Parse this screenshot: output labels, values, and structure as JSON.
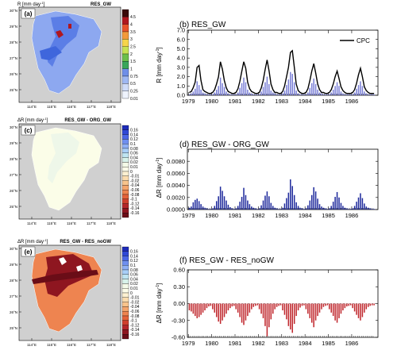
{
  "map_a": {
    "panel_label": "(a)",
    "unit_label": "R [mm day",
    "unit_exp": "-1",
    "unit_close": "]",
    "experiment": "RES_GW",
    "colorbar": {
      "labels": [
        "4.5",
        "4",
        "3.5",
        "3",
        "2.5",
        "2",
        "1.5",
        "1",
        "0.75",
        "0.5",
        "0.25",
        "0.01"
      ],
      "colors": [
        "#3a0a0a",
        "#b0171f",
        "#e8532b",
        "#f39a3a",
        "#f7d54a",
        "#c6e253",
        "#6cbf4a",
        "#3aa65a",
        "#6f8fe8",
        "#9fb8f3",
        "#cfdcf9",
        "#eef3fd"
      ]
    }
  },
  "map_c": {
    "panel_label": "(c)",
    "unit_label": "ΔR [mm day",
    "unit_exp": "-1",
    "unit_close": "]",
    "experiment": "RES_GW - ORG_GW",
    "colorbar": {
      "labels": [
        "0.16",
        "0.14",
        "0.12",
        "0.1",
        "0.08",
        "0.06",
        "0.04",
        "0.02",
        "0.01",
        "0",
        "-0.01",
        "-0.02",
        "-0.04",
        "-0.06",
        "-0.08",
        "-0.1",
        "-0.12",
        "-0.14",
        "-0.16"
      ],
      "colors": [
        "#1d2bb8",
        "#2f48d6",
        "#4a66e6",
        "#6f8ff0",
        "#8fb0f6",
        "#a9cff8",
        "#bfe5f2",
        "#d8f2ea",
        "#f4fae8",
        "#fdfde9",
        "#fdf1d2",
        "#fbdcae",
        "#f8c48c",
        "#f4a56c",
        "#ee8450",
        "#e4623a",
        "#cf402e",
        "#b3262a",
        "#8e1620",
        "#6a0d17"
      ]
    }
  },
  "map_e": {
    "panel_label": "(e)",
    "unit_label": "ΔR [mm day",
    "unit_exp": "-1",
    "unit_close": "]",
    "experiment": "RES_GW - RES_noGW",
    "colorbar": {
      "labels": [
        "0.16",
        "0.14",
        "0.12",
        "0.1",
        "0.08",
        "0.06",
        "0.04",
        "0.02",
        "0.01",
        "0",
        "-0.01",
        "-0.02",
        "-0.04",
        "-0.06",
        "-0.08",
        "-0.1",
        "-0.12",
        "-0.14",
        "-0.16"
      ]
    }
  },
  "map_axes": {
    "lat_ticks": [
      "30°N",
      "29°N",
      "28°N",
      "27°N",
      "26°N",
      "25°N"
    ],
    "lon_ticks": [
      "114°E",
      "115°E",
      "116°E",
      "117°E",
      "118°E"
    ]
  },
  "chart_data": [
    {
      "type": "bar",
      "panel_label": "(b)",
      "title": "RES_GW",
      "ylabel": "R [mm day",
      "ylabel_exp": "-1",
      "ylabel_close": "]",
      "ylim": [
        0,
        7.0
      ],
      "yticks": [
        "0.0",
        "1.0",
        "2.0",
        "3.0",
        "4.0",
        "5.0",
        "6.0",
        "7.0"
      ],
      "x_ticks": [
        "1979",
        "1980",
        "1981",
        "1982",
        "1983",
        "1984",
        "1985",
        "1986"
      ],
      "legend": "CPC",
      "bar_values": [
        0.1,
        0.2,
        0.4,
        0.7,
        1.5,
        1.1,
        0.6,
        0.3,
        0.2,
        0.1,
        0.1,
        0.1,
        0.1,
        0.3,
        0.6,
        1.0,
        1.9,
        1.3,
        0.9,
        0.4,
        0.2,
        0.1,
        0.1,
        0.1,
        0.1,
        0.3,
        0.8,
        1.3,
        1.9,
        1.4,
        0.6,
        0.3,
        0.2,
        0.1,
        0.1,
        0.1,
        0.1,
        0.4,
        0.9,
        1.4,
        2.0,
        1.2,
        0.5,
        0.3,
        0.2,
        0.1,
        0.1,
        0.1,
        0.2,
        0.5,
        1.1,
        1.7,
        2.5,
        2.3,
        1.4,
        0.5,
        0.2,
        0.1,
        0.1,
        0.1,
        0.1,
        0.3,
        0.8,
        1.3,
        1.8,
        1.2,
        0.6,
        0.3,
        0.2,
        0.1,
        0.1,
        0.1,
        0.1,
        0.3,
        0.6,
        1.0,
        1.4,
        1.0,
        0.4,
        0.2,
        0.1,
        0.1,
        0.1,
        0.1,
        0.1,
        0.3,
        0.7,
        1.1,
        1.5,
        1.0,
        0.4,
        0.2,
        0.1,
        0.1,
        0.1,
        0.1
      ],
      "line_values": [
        0.3,
        0.4,
        0.8,
        1.4,
        3.0,
        3.2,
        1.6,
        0.6,
        0.4,
        0.3,
        0.2,
        0.2,
        0.3,
        0.6,
        1.2,
        2.0,
        3.6,
        2.8,
        1.6,
        0.8,
        0.4,
        0.3,
        0.2,
        0.2,
        0.3,
        0.7,
        1.5,
        2.6,
        3.6,
        2.9,
        1.4,
        0.7,
        0.4,
        0.3,
        0.2,
        0.2,
        0.3,
        0.8,
        1.6,
        2.8,
        3.8,
        2.6,
        1.2,
        0.6,
        0.3,
        0.3,
        0.2,
        0.2,
        0.4,
        1.0,
        2.0,
        3.0,
        4.6,
        4.8,
        3.0,
        1.2,
        0.5,
        0.3,
        0.2,
        0.2,
        0.3,
        0.7,
        1.6,
        2.6,
        3.4,
        2.4,
        1.2,
        0.6,
        0.3,
        0.3,
        0.2,
        0.2,
        0.3,
        0.6,
        1.2,
        2.0,
        2.6,
        1.8,
        0.9,
        0.5,
        0.3,
        0.2,
        0.2,
        0.2,
        0.3,
        0.6,
        1.3,
        2.2,
        2.9,
        2.0,
        0.9,
        0.5,
        0.3,
        0.2,
        0.2,
        0.2
      ],
      "bar_color": "#7b80d6",
      "line_color": "#000000"
    },
    {
      "type": "bar",
      "panel_label": "(d)",
      "title": "RES_GW - ORG_GW",
      "ylabel": "ΔR [mm day",
      "ylabel_exp": "-1",
      "ylabel_close": "]",
      "ylim": [
        0,
        0.01
      ],
      "yticks": [
        "0.0000",
        "0.0020",
        "0.0040",
        "0.0060",
        "0.0080"
      ],
      "ytick_values": [
        0,
        0.002,
        0.004,
        0.006,
        0.008
      ],
      "x_ticks": [
        "1979",
        "1980",
        "1981",
        "1982",
        "1983",
        "1984",
        "1985",
        "1986"
      ],
      "bar_values": [
        0.0003,
        0.0005,
        0.0012,
        0.0016,
        0.0018,
        0.0014,
        0.0009,
        0.0005,
        0.0003,
        0.0002,
        0.0001,
        0.0001,
        0.0002,
        0.0006,
        0.0014,
        0.0022,
        0.0038,
        0.0031,
        0.0022,
        0.0015,
        0.0008,
        0.0004,
        0.0002,
        0.0001,
        0.0002,
        0.0006,
        0.0013,
        0.0021,
        0.0036,
        0.0024,
        0.0015,
        0.0009,
        0.0005,
        0.0003,
        0.0002,
        0.0001,
        0.0002,
        0.0007,
        0.0015,
        0.0023,
        0.003,
        0.0022,
        0.0011,
        0.0006,
        0.0003,
        0.0002,
        0.0001,
        0.0001,
        0.0003,
        0.001,
        0.0019,
        0.0028,
        0.005,
        0.0039,
        0.0024,
        0.0012,
        0.0006,
        0.0003,
        0.0002,
        0.0001,
        0.0002,
        0.0007,
        0.0015,
        0.0024,
        0.0037,
        0.003,
        0.0018,
        0.0009,
        0.0005,
        0.0003,
        0.0002,
        0.0001,
        0.0002,
        0.0006,
        0.0013,
        0.0021,
        0.0029,
        0.002,
        0.0011,
        0.0006,
        0.0003,
        0.0002,
        0.0001,
        0.0001,
        0.0002,
        0.0006,
        0.0013,
        0.002,
        0.0027,
        0.0019,
        0.001,
        0.0005,
        0.0003,
        0.0002,
        0.0001,
        0.0001
      ],
      "bar_color": "#1f2a9c"
    },
    {
      "type": "bar",
      "panel_label": "(f)",
      "title": "RES_GW - RES_noGW",
      "ylabel": "ΔR [mm day",
      "ylabel_exp": "-1",
      "ylabel_close": "]",
      "ylim": [
        -0.6,
        0.6
      ],
      "yticks": [
        "0.60",
        "0.30",
        "0.00",
        "-0.30",
        "-0.60"
      ],
      "ytick_values": [
        0.6,
        0.3,
        0.0,
        -0.3,
        -0.6
      ],
      "x_ticks": [
        "1979",
        "1980",
        "1981",
        "1982",
        "1983",
        "1984",
        "1985",
        "1986"
      ],
      "bar_values": [
        -0.12,
        -0.14,
        -0.18,
        -0.22,
        -0.26,
        -0.24,
        -0.2,
        -0.16,
        -0.12,
        -0.08,
        -0.05,
        -0.04,
        -0.1,
        -0.16,
        -0.24,
        -0.32,
        -0.36,
        -0.3,
        -0.24,
        -0.18,
        -0.12,
        -0.08,
        -0.05,
        -0.04,
        -0.1,
        -0.16,
        -0.24,
        -0.34,
        -0.38,
        -0.3,
        -0.22,
        -0.16,
        -0.1,
        -0.06,
        -0.04,
        -0.03,
        -0.1,
        -0.18,
        -0.26,
        -0.4,
        -0.58,
        -0.42,
        -0.28,
        -0.18,
        -0.1,
        -0.06,
        -0.04,
        -0.03,
        -0.12,
        -0.2,
        -0.28,
        -0.4,
        -0.46,
        -0.52,
        -0.36,
        -0.22,
        -0.12,
        -0.07,
        -0.04,
        -0.03,
        -0.1,
        -0.18,
        -0.26,
        -0.34,
        -0.42,
        -0.3,
        -0.22,
        -0.16,
        -0.1,
        -0.06,
        -0.04,
        -0.03,
        -0.1,
        -0.16,
        -0.22,
        -0.3,
        -0.34,
        -0.26,
        -0.18,
        -0.12,
        -0.08,
        -0.05,
        -0.04,
        -0.03,
        -0.08,
        -0.14,
        -0.2,
        -0.26,
        -0.3,
        -0.24,
        -0.16,
        -0.1,
        -0.06,
        -0.04,
        -0.03,
        -0.03
      ],
      "bar_color": "#c0272d"
    }
  ]
}
